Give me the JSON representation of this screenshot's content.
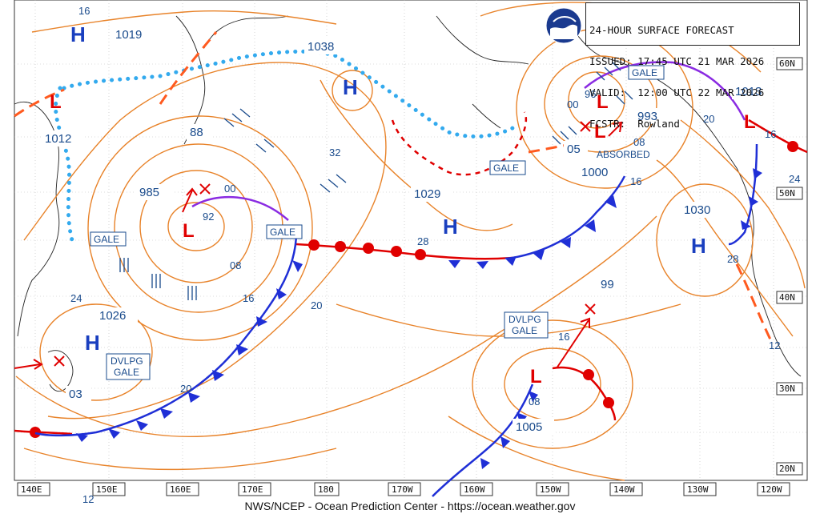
{
  "header": {
    "line1": "24-HOUR SURFACE FORECAST",
    "line2": "ISSUED: 17:45 UTC 21 MAR 2026",
    "line3": "VALID:  12:00 UTC 22 MAR 2026",
    "line4": "FCSTR:  Rowland"
  },
  "logo": {
    "name": "NOAA"
  },
  "footer": "NWS/NCEP - Ocean Prediction Center - https://ocean.weather.gov",
  "longitudes": [
    "140E",
    "150E",
    "160E",
    "170E",
    "180",
    "170W",
    "160W",
    "150W",
    "140W",
    "130W",
    "120W"
  ],
  "latitudes": [
    "60N",
    "50N",
    "40N",
    "30N",
    "20N"
  ],
  "highs": [
    "H",
    "H",
    "H",
    "H",
    "H"
  ],
  "lows": [
    "L",
    "L",
    "L",
    "L",
    "L",
    "L"
  ],
  "pressure_labels": [
    "1019",
    "1038",
    "1012",
    "985",
    "1029",
    "1026",
    "03",
    "1030",
    "1013",
    "993",
    "1000",
    "1005",
    "99",
    "88",
    "05"
  ],
  "isobar_labels": [
    "16",
    "92",
    "00",
    "08",
    "16",
    "20",
    "24",
    "28",
    "32",
    "20",
    "28",
    "24",
    "12",
    "12",
    "16",
    "20",
    "16",
    "08",
    "96",
    "00",
    "08",
    "16"
  ],
  "warnings": [
    "GALE",
    "GALE",
    "GALE",
    "GALE",
    "GALE",
    "DVLPG",
    "GALE",
    "DVLPG",
    "GALE"
  ],
  "absorbed": "ABSORBED",
  "colors": {
    "isobar": "#e8832a",
    "cold_front": "#1f2fd6",
    "warm_front": "#e00000",
    "occluded": "#8a2be2",
    "ridge": "#33aaee",
    "trough": "#ff5a1f"
  }
}
